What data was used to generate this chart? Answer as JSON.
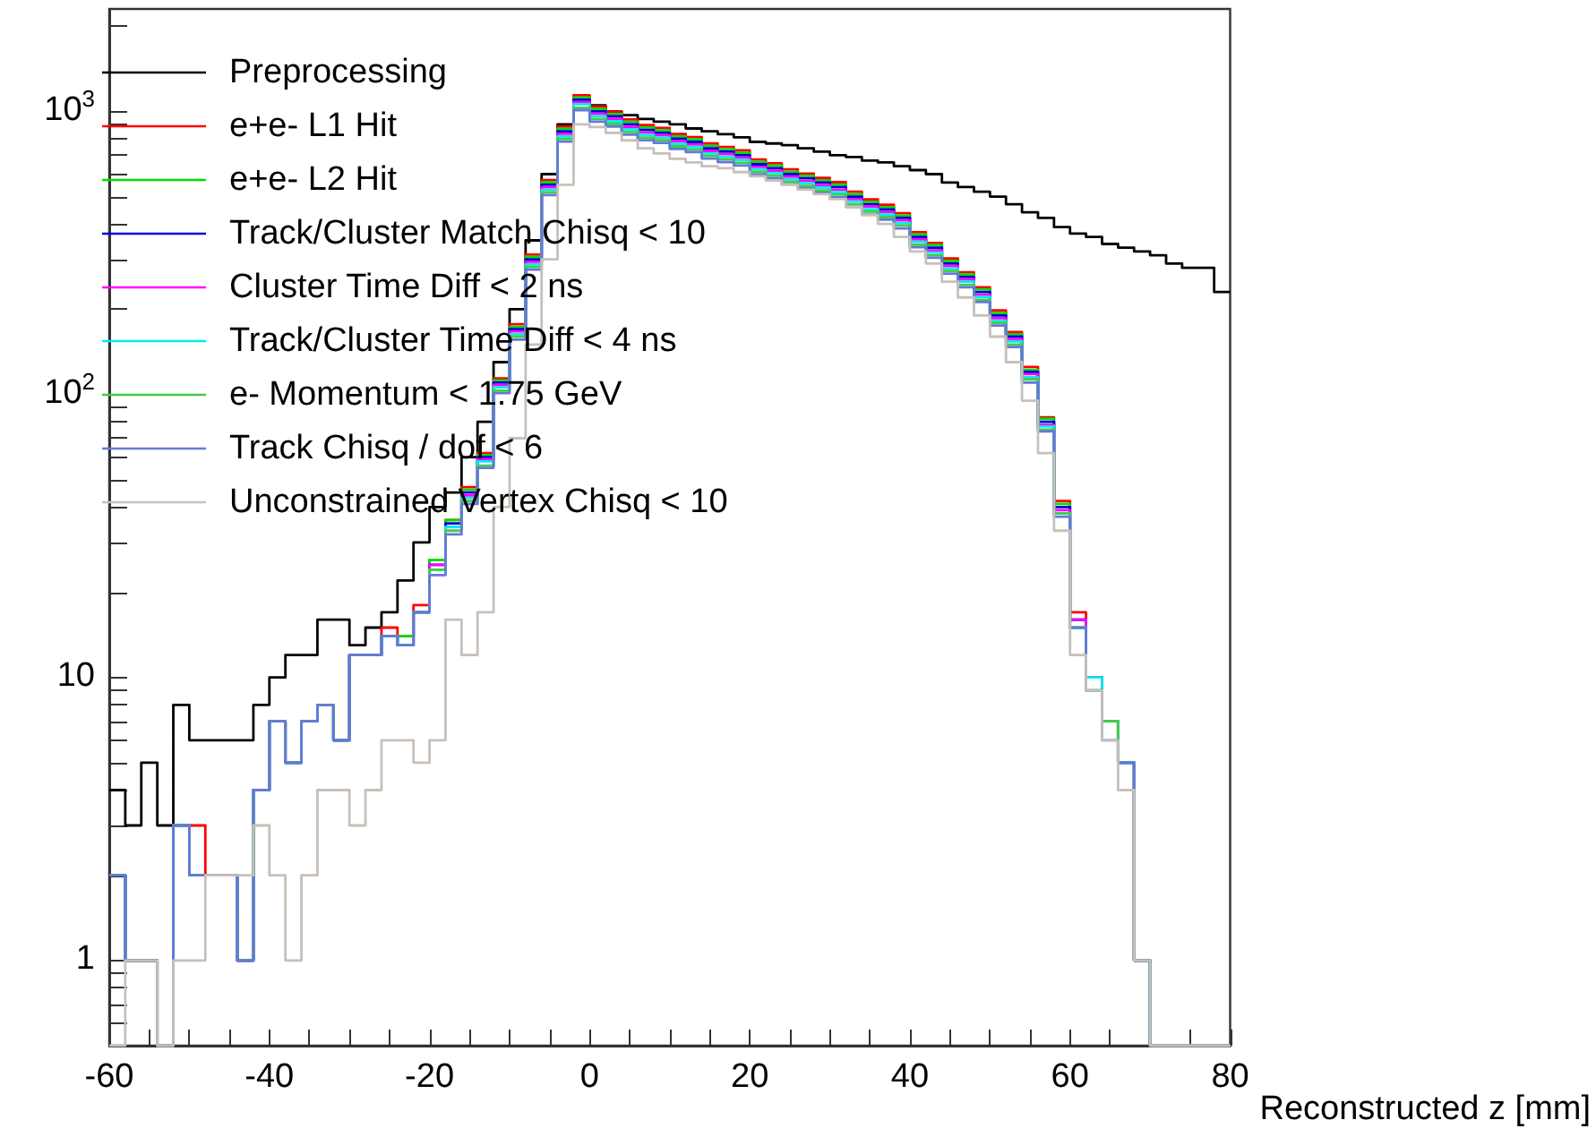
{
  "chart_data": {
    "type": "histogram",
    "xlabel": "Reconstructed z [mm]",
    "bins": [
      -60,
      -58,
      -56,
      -54,
      -52,
      -50,
      -48,
      -46,
      -44,
      -42,
      -40,
      -38,
      -36,
      -34,
      -32,
      -30,
      -28,
      -26,
      -24,
      -22,
      -20,
      -18,
      -16,
      -14,
      -12,
      -10,
      -8,
      -6,
      -4,
      -2,
      0,
      2,
      4,
      6,
      8,
      10,
      12,
      14,
      16,
      18,
      20,
      22,
      24,
      26,
      28,
      30,
      32,
      34,
      36,
      38,
      40,
      42,
      44,
      46,
      48,
      50,
      52,
      54,
      56,
      58,
      60,
      62,
      64,
      66,
      68,
      70,
      72,
      74,
      76,
      78,
      80
    ],
    "series": [
      {
        "name": "Preprocessing",
        "color": "#000000",
        "values": [
          4,
          3,
          5,
          3,
          8,
          6,
          6,
          6,
          6,
          8,
          10,
          12,
          12,
          16,
          16,
          13,
          15,
          17,
          22,
          30,
          40,
          45,
          60,
          80,
          130,
          200,
          350,
          600,
          900,
          1100,
          1050,
          1000,
          970,
          940,
          920,
          900,
          870,
          850,
          830,
          810,
          780,
          770,
          760,
          740,
          720,
          700,
          690,
          670,
          660,
          640,
          620,
          600,
          560,
          540,
          520,
          500,
          470,
          440,
          420,
          390,
          370,
          360,
          340,
          330,
          320,
          310,
          290,
          280,
          280,
          230
        ]
      },
      {
        "name": "e+e- L1 Hit",
        "color": "#ff0000",
        "values": [
          2,
          1,
          1,
          null,
          3,
          3,
          2,
          2,
          1,
          4,
          7,
          5,
          7,
          8,
          6,
          12,
          12,
          15,
          14,
          18,
          26,
          36,
          47,
          62,
          114,
          177,
          312,
          572,
          884,
          1140,
          1040,
          998,
          936,
          894,
          874,
          832,
          811,
          770,
          749,
          728,
          676,
          655,
          624,
          603,
          582,
          562,
          520,
          489,
          468,
          437,
          374,
          343,
          302,
          270,
          239,
          198,
          166,
          125,
          83,
          42,
          17,
          10,
          7,
          5,
          1,
          null,
          null,
          null,
          null,
          null
        ]
      },
      {
        "name": "e+e- L2 Hit",
        "color": "#00dd00",
        "values": [
          2,
          1,
          1,
          null,
          3,
          2,
          2,
          2,
          1,
          4,
          7,
          5,
          7,
          8,
          6,
          12,
          12,
          14,
          14,
          17,
          26,
          36,
          46,
          61,
          112,
          173,
          306,
          561,
          867,
          1120,
          1020,
          979,
          918,
          877,
          857,
          816,
          796,
          755,
          734,
          714,
          663,
          643,
          612,
          592,
          571,
          551,
          510,
          479,
          459,
          428,
          367,
          337,
          296,
          265,
          235,
          194,
          163,
          122,
          82,
          41,
          16,
          10,
          7,
          5,
          1,
          null,
          null,
          null,
          null,
          null
        ]
      },
      {
        "name": "Track/Cluster Match Chisq < 10",
        "color": "#0000dd",
        "values": [
          2,
          1,
          1,
          null,
          3,
          2,
          2,
          2,
          1,
          4,
          7,
          5,
          7,
          8,
          6,
          12,
          12,
          14,
          13,
          17,
          25,
          35,
          45,
          60,
          110,
          170,
          300,
          550,
          850,
          1100,
          1000,
          960,
          900,
          860,
          840,
          800,
          780,
          740,
          720,
          700,
          650,
          630,
          600,
          580,
          560,
          540,
          500,
          470,
          450,
          420,
          360,
          330,
          290,
          260,
          230,
          190,
          160,
          120,
          80,
          40,
          16,
          10,
          7,
          5,
          1,
          null,
          null,
          null,
          null,
          null
        ]
      },
      {
        "name": "Cluster Time Diff < 2 ns",
        "color": "#ff00ff",
        "values": [
          2,
          1,
          1,
          null,
          3,
          2,
          2,
          2,
          1,
          4,
          7,
          5,
          7,
          8,
          6,
          12,
          12,
          14,
          13,
          17,
          25,
          34,
          44,
          59,
          108,
          167,
          294,
          539,
          833,
          1080,
          980,
          941,
          882,
          843,
          823,
          784,
          764,
          725,
          706,
          686,
          637,
          617,
          588,
          568,
          549,
          529,
          490,
          461,
          441,
          412,
          353,
          323,
          284,
          255,
          225,
          186,
          157,
          118,
          78,
          39,
          16,
          10,
          7,
          5,
          1,
          null,
          null,
          null,
          null,
          null
        ]
      },
      {
        "name": "Track/Cluster Time Diff < 4 ns",
        "color": "#00eeee",
        "values": [
          2,
          1,
          1,
          null,
          3,
          2,
          2,
          2,
          1,
          4,
          7,
          5,
          7,
          8,
          6,
          12,
          12,
          14,
          13,
          17,
          24,
          34,
          43,
          58,
          106,
          163,
          288,
          528,
          816,
          1060,
          960,
          922,
          864,
          826,
          806,
          768,
          749,
          710,
          691,
          672,
          624,
          605,
          576,
          557,
          538,
          518,
          480,
          451,
          432,
          403,
          346,
          317,
          278,
          250,
          221,
          182,
          154,
          115,
          77,
          38,
          15,
          10,
          7,
          5,
          1,
          null,
          null,
          null,
          null,
          null
        ]
      },
      {
        "name": "e- Momentum < 1.75 GeV",
        "color": "#44cc44",
        "values": [
          2,
          1,
          1,
          null,
          3,
          2,
          2,
          2,
          1,
          4,
          7,
          5,
          7,
          8,
          6,
          12,
          12,
          14,
          13,
          17,
          24,
          33,
          42,
          56,
          103,
          160,
          282,
          517,
          799,
          1030,
          940,
          902,
          846,
          808,
          790,
          752,
          733,
          696,
          677,
          658,
          611,
          592,
          564,
          545,
          526,
          508,
          470,
          442,
          423,
          395,
          338,
          310,
          273,
          244,
          216,
          179,
          150,
          113,
          75,
          38,
          15,
          9,
          7,
          5,
          1,
          null,
          null,
          null,
          null,
          null
        ]
      },
      {
        "name": "Track Chisq / dof < 6",
        "color": "#6677dd",
        "values": [
          2,
          1,
          1,
          null,
          3,
          2,
          2,
          2,
          1,
          4,
          7,
          5,
          7,
          8,
          6,
          12,
          12,
          14,
          13,
          17,
          23,
          32,
          41,
          55,
          101,
          156,
          276,
          506,
          782,
          1010,
          920,
          883,
          828,
          791,
          773,
          736,
          718,
          681,
          662,
          644,
          598,
          580,
          552,
          534,
          515,
          497,
          460,
          432,
          414,
          386,
          331,
          304,
          267,
          239,
          212,
          175,
          147,
          110,
          74,
          37,
          15,
          9,
          6,
          5,
          1,
          null,
          null,
          null,
          null,
          null
        ]
      },
      {
        "name": "Unconstrained Vertex Chisq < 10",
        "color": "#c8c0b8",
        "values": [
          null,
          1,
          1,
          null,
          1,
          1,
          2,
          2,
          2,
          3,
          2,
          1,
          2,
          4,
          4,
          3,
          4,
          6,
          6,
          5,
          6,
          16,
          12,
          17,
          40,
          70,
          150,
          300,
          550,
          900,
          880,
          840,
          790,
          740,
          710,
          680,
          660,
          640,
          630,
          610,
          590,
          570,
          550,
          530,
          510,
          490,
          460,
          430,
          400,
          360,
          320,
          290,
          250,
          220,
          190,
          160,
          130,
          95,
          62,
          33,
          12,
          9,
          6,
          4,
          1,
          null,
          null,
          null,
          null,
          null
        ]
      }
    ],
    "xlim": [
      -60,
      80
    ],
    "xticks": [
      -60,
      {
        "value": -55,
        "label": null
      },
      {
        "value": -50,
        "label": null
      },
      {
        "value": -45,
        "label": null
      },
      -40,
      {
        "value": -35,
        "label": null
      },
      {
        "value": -30,
        "label": null
      },
      {
        "value": -25,
        "label": null
      },
      -20,
      {
        "value": -15,
        "label": null
      },
      {
        "value": -10,
        "label": null
      },
      {
        "value": -5,
        "label": null
      },
      0,
      {
        "value": 5,
        "label": null
      },
      {
        "value": 10,
        "label": null
      },
      {
        "value": 15,
        "label": null
      },
      20,
      {
        "value": 25,
        "label": null
      },
      {
        "value": 30,
        "label": null
      },
      {
        "value": 35,
        "label": null
      },
      40,
      {
        "value": 45,
        "label": null
      },
      {
        "value": 50,
        "label": null
      },
      {
        "value": 55,
        "label": null
      },
      60,
      {
        "value": 65,
        "label": null
      },
      {
        "value": 70,
        "label": null
      },
      {
        "value": 75,
        "label": null
      },
      80
    ],
    "ylim": [
      0.5,
      2300
    ],
    "log": "y",
    "yticks": [
      {
        "value": 0.6,
        "label": null
      },
      {
        "value": 0.7,
        "label": null
      },
      {
        "value": 0.8,
        "label": null
      },
      {
        "value": 0.9,
        "label": null
      },
      1,
      {
        "value": 2,
        "label": null
      },
      {
        "value": 3,
        "label": null
      },
      {
        "value": 4,
        "label": null
      },
      {
        "value": 5,
        "label": null
      },
      {
        "value": 6,
        "label": null
      },
      {
        "value": 7,
        "label": null
      },
      {
        "value": 8,
        "label": null
      },
      {
        "value": 9,
        "label": null
      },
      10,
      {
        "value": 20,
        "label": null
      },
      {
        "value": 30,
        "label": null
      },
      {
        "value": 40,
        "label": null
      },
      {
        "value": 50,
        "label": null
      },
      {
        "value": 60,
        "label": null
      },
      {
        "value": 70,
        "label": null
      },
      {
        "value": 80,
        "label": null
      },
      {
        "value": 90,
        "label": null
      },
      {
        "value": 100,
        "label": "10$^{2}$"
      },
      {
        "value": 200,
        "label": null
      },
      {
        "value": 300,
        "label": null
      },
      {
        "value": 400,
        "label": null
      },
      {
        "value": 500,
        "label": null
      },
      {
        "value": 600,
        "label": null
      },
      {
        "value": 700,
        "label": null
      },
      {
        "value": 800,
        "label": null
      },
      {
        "value": 900,
        "label": null
      },
      {
        "value": 1000,
        "label": "10$^{3}$"
      },
      {
        "value": 2000,
        "label": null
      }
    ],
    "grid": false,
    "legend": "top left"
  }
}
